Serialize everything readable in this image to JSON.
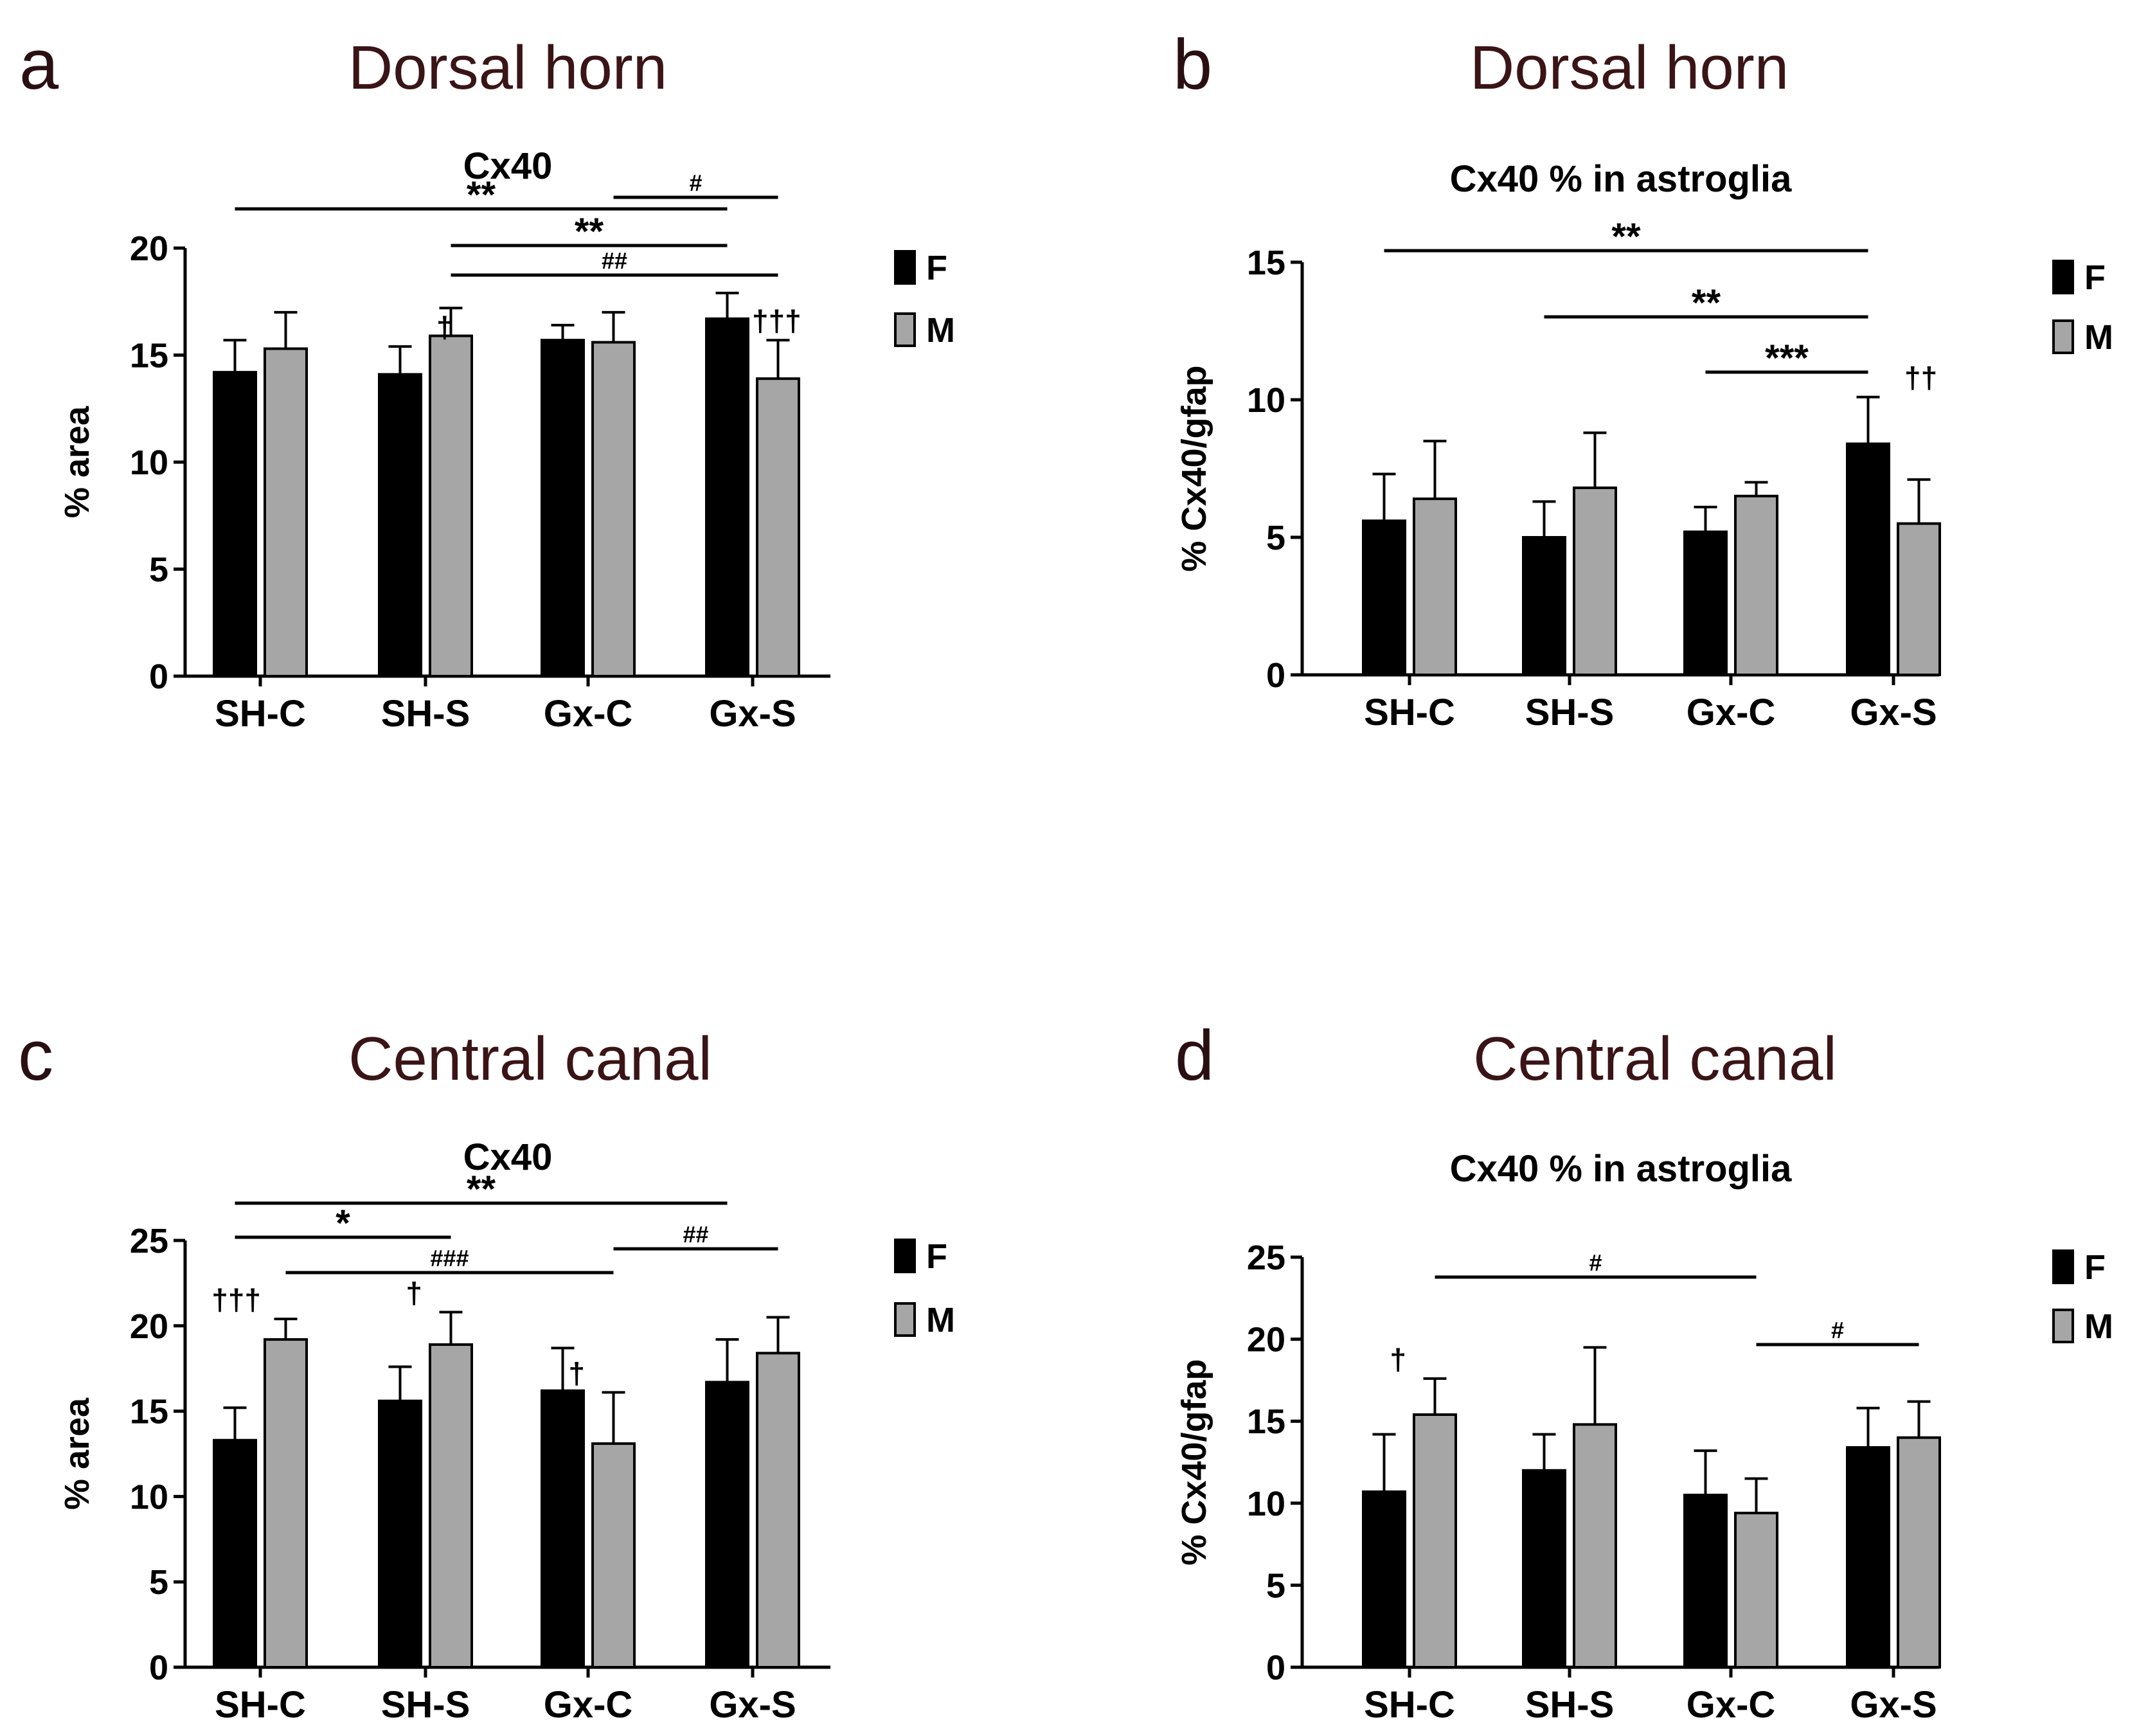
{
  "colors": {
    "female": "#000000",
    "male": "#a6a6a6",
    "text": "#000000",
    "panel_text": "#3a1416"
  },
  "chart_data": [
    {
      "id": "a",
      "panel_letter": "a",
      "panel_title": "Dorsal horn",
      "type": "bar",
      "title": "Cx40",
      "ylabel": "% area",
      "xlabel": "",
      "ylim": [
        0,
        20
      ],
      "yticks": [
        0,
        5,
        10,
        15,
        20
      ],
      "categories": [
        "SH-C",
        "SH-S",
        "Gx-C",
        "Gx-S"
      ],
      "series": [
        {
          "name": "F",
          "values": [
            14.2,
            14.1,
            15.7,
            16.7
          ],
          "errors": [
            1.5,
            1.3,
            0.7,
            1.2
          ]
        },
        {
          "name": "M",
          "values": [
            15.3,
            15.9,
            15.6,
            13.9
          ],
          "errors": [
            1.7,
            1.3,
            1.4,
            1.8
          ]
        }
      ],
      "brackets": [
        {
          "from": [
            0,
            0
          ],
          "to": [
            3,
            0
          ],
          "label": "**"
        },
        {
          "from": [
            2,
            1
          ],
          "to": [
            3,
            1
          ],
          "label": "#"
        },
        {
          "from": [
            1,
            1
          ],
          "to": [
            3,
            0
          ],
          "label": "**"
        },
        {
          "from": [
            1,
            1
          ],
          "to": [
            3,
            1
          ],
          "label": "##"
        }
      ],
      "annotations": [
        {
          "group": 1,
          "series": 0,
          "label": "†"
        },
        {
          "group": 3,
          "series": 1,
          "label": "†††"
        }
      ],
      "legend": [
        "F",
        "M"
      ]
    },
    {
      "id": "b",
      "panel_letter": "b",
      "panel_title": "Dorsal horn",
      "type": "bar",
      "title": "Cx40 % in astroglia",
      "ylabel": "% Cx40/gfap",
      "xlabel": "",
      "ylim": [
        0,
        15
      ],
      "yticks": [
        0,
        5,
        10,
        15
      ],
      "categories": [
        "SH-C",
        "SH-S",
        "Gx-C",
        "Gx-S"
      ],
      "series": [
        {
          "name": "F",
          "values": [
            5.6,
            5.0,
            5.2,
            8.4
          ],
          "errors": [
            1.7,
            1.3,
            0.9,
            1.7
          ]
        },
        {
          "name": "M",
          "values": [
            6.4,
            6.8,
            6.5,
            5.5
          ],
          "errors": [
            2.1,
            2.0,
            0.5,
            1.6
          ]
        }
      ],
      "brackets": [
        {
          "from": [
            0,
            0
          ],
          "to": [
            3,
            0
          ],
          "label": "**"
        },
        {
          "from": [
            1,
            0
          ],
          "to": [
            3,
            0
          ],
          "label": "**"
        },
        {
          "from": [
            2,
            0
          ],
          "to": [
            3,
            0
          ],
          "label": "***"
        }
      ],
      "annotations": [
        {
          "group": 3,
          "series": 0,
          "label": "††"
        }
      ],
      "legend": [
        "F",
        "M"
      ]
    },
    {
      "id": "c",
      "panel_letter": "c",
      "panel_title": "Central canal",
      "type": "bar",
      "title": "Cx40",
      "ylabel": "% area",
      "xlabel": "",
      "ylim": [
        0,
        25
      ],
      "yticks": [
        0,
        5,
        10,
        15,
        20,
        25
      ],
      "categories": [
        "SH-C",
        "SH-S",
        "Gx-C",
        "Gx-S"
      ],
      "series": [
        {
          "name": "F",
          "values": [
            13.3,
            15.6,
            16.2,
            16.7
          ],
          "errors": [
            1.9,
            2.0,
            2.5,
            2.5
          ]
        },
        {
          "name": "M",
          "values": [
            19.2,
            18.9,
            13.1,
            18.4
          ],
          "errors": [
            1.2,
            1.9,
            3.0,
            2.1
          ]
        }
      ],
      "brackets": [
        {
          "from": [
            0,
            0
          ],
          "to": [
            3,
            0
          ],
          "label": "**"
        },
        {
          "from": [
            0,
            0
          ],
          "to": [
            1,
            1
          ],
          "label": "*"
        },
        {
          "from": [
            0,
            1
          ],
          "to": [
            2,
            1
          ],
          "label": "###"
        },
        {
          "from": [
            2,
            1
          ],
          "to": [
            3,
            1
          ],
          "label": "##"
        }
      ],
      "annotations": [
        {
          "group": 0,
          "series": 1,
          "label": "†††"
        },
        {
          "group": 1,
          "series": 1,
          "label": "†"
        },
        {
          "group": 2,
          "series": 1,
          "label": "†"
        }
      ],
      "legend": [
        "F",
        "M"
      ]
    },
    {
      "id": "d",
      "panel_letter": "d",
      "panel_title": "Central canal",
      "type": "bar",
      "title": "Cx40 % in astroglia",
      "ylabel": "% Cx40/gfap",
      "xlabel": "",
      "ylim": [
        0,
        25
      ],
      "yticks": [
        0,
        5,
        10,
        15,
        20,
        25
      ],
      "categories": [
        "SH-C",
        "SH-S",
        "Gx-C",
        "Gx-S"
      ],
      "series": [
        {
          "name": "F",
          "values": [
            10.7,
            12.0,
            10.5,
            13.4
          ],
          "errors": [
            3.5,
            2.2,
            2.7,
            2.4
          ]
        },
        {
          "name": "M",
          "values": [
            15.4,
            14.8,
            9.4,
            14.0
          ],
          "errors": [
            2.2,
            4.7,
            2.1,
            2.2
          ]
        }
      ],
      "brackets": [
        {
          "from": [
            0,
            1
          ],
          "to": [
            2,
            1
          ],
          "label": "#"
        },
        {
          "from": [
            2,
            1
          ],
          "to": [
            3,
            1
          ],
          "label": "#"
        }
      ],
      "annotations": [
        {
          "group": 0,
          "series": 1,
          "label": "†"
        }
      ],
      "legend": [
        "F",
        "M"
      ]
    }
  ]
}
